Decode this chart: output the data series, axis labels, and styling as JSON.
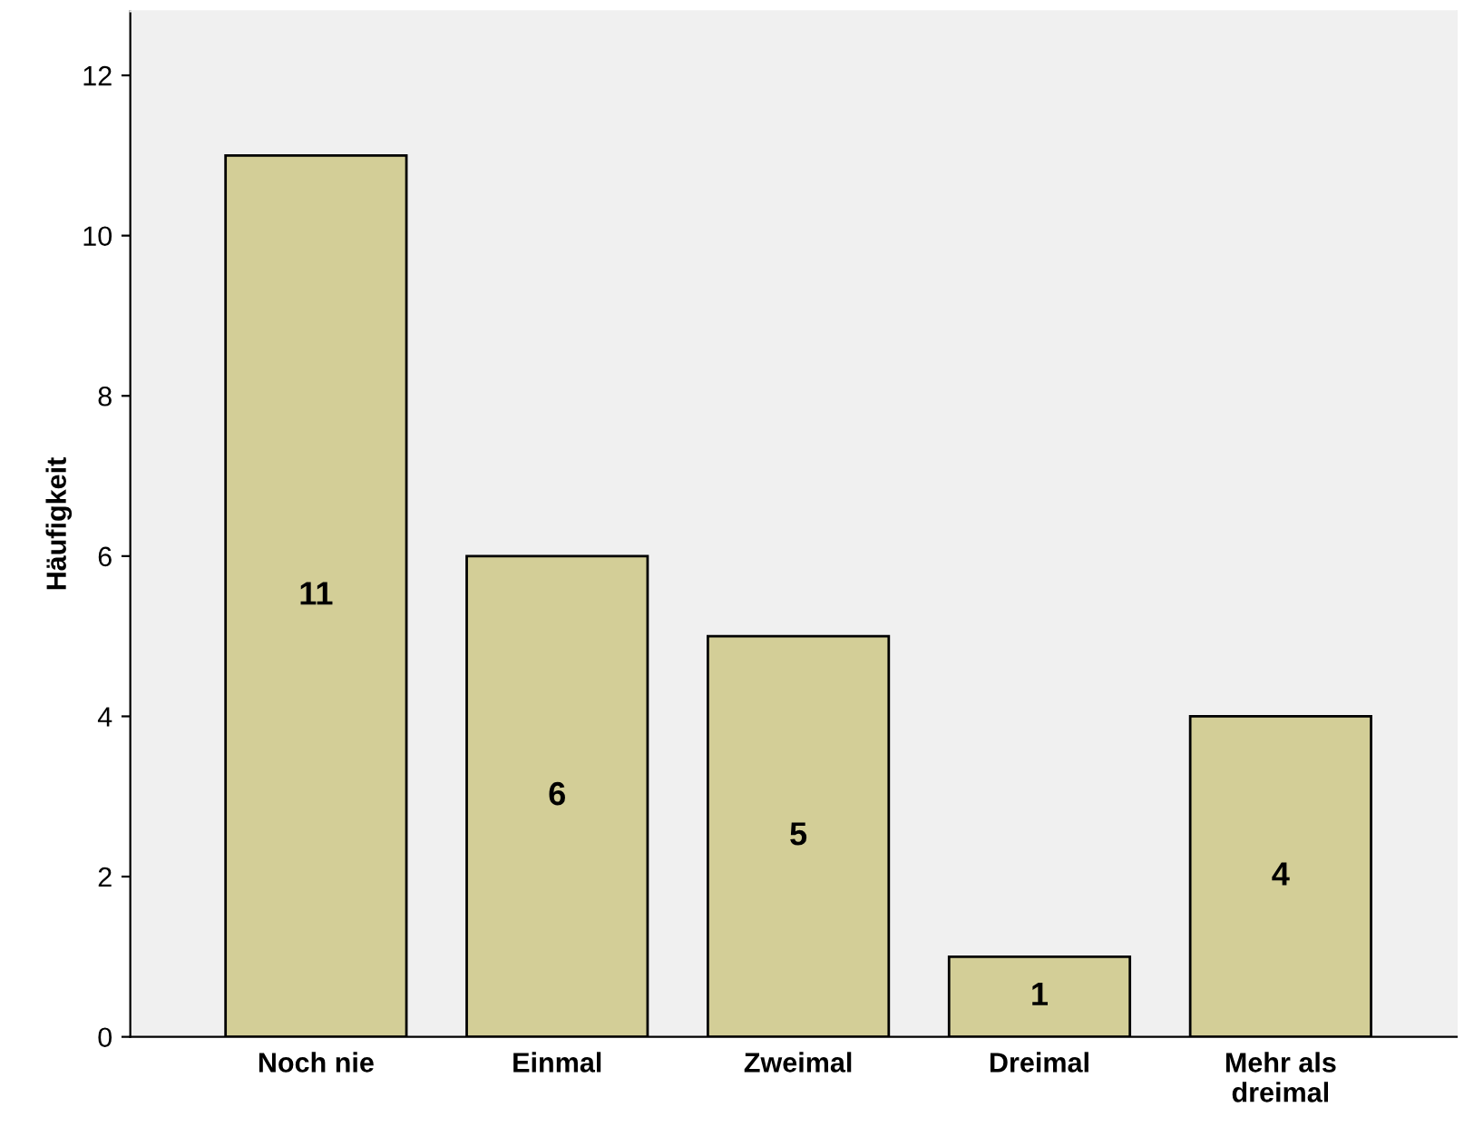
{
  "chart_data": {
    "type": "bar",
    "ylabel": "Häufigkeit",
    "categories": [
      "Noch nie",
      "Einmal",
      "Zweimal",
      "Dreimal",
      "Mehr als\ndreimal"
    ],
    "values": [
      11,
      6,
      5,
      1,
      4
    ],
    "color": "#d3ce97",
    "ylim": [
      0,
      12.8
    ],
    "yticks": [
      0,
      2,
      4,
      6,
      8,
      10,
      12
    ],
    "grid": false,
    "legend": false,
    "data_labels": true
  }
}
